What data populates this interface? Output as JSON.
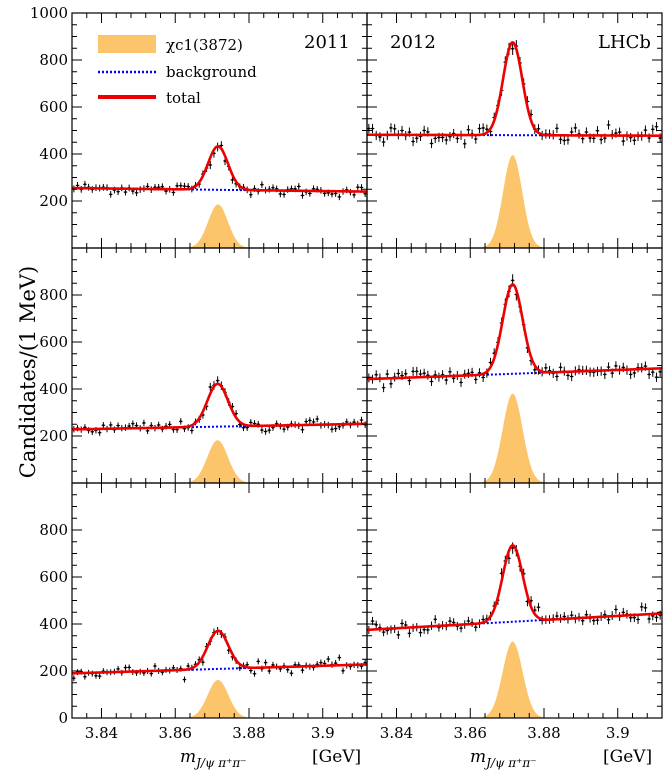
{
  "chart_data": {
    "type": "scatter",
    "y_axis_label": "Candidates/(1 MeV)",
    "x_axis_symbol": "m",
    "x_axis_subscript": "J/ψ π⁺π⁻",
    "x_axis_unit": "[GeV]",
    "x_range": [
      3.832,
      3.912
    ],
    "x_ticks": [
      3.84,
      3.86,
      3.88,
      3.9
    ],
    "x_tick_labels": [
      "3.84",
      "3.86",
      "3.88",
      "3.9"
    ],
    "legend": {
      "signal": "χc1(3872)",
      "background": "background",
      "total": "total"
    },
    "experiment_label": "LHCb",
    "year_labels": [
      "2011",
      "2012"
    ],
    "colors": {
      "signal_fill": "#fcc56b",
      "background_line": "#0000ff",
      "total_line": "#ee0000",
      "data_points": "#000000"
    },
    "panels": [
      {
        "row": 0,
        "col": 0,
        "ylim": [
          0,
          1000
        ],
        "y_ticks": [
          200,
          400,
          600,
          800,
          1000
        ],
        "y_tick_labels": [
          "200",
          "400",
          "600",
          "800",
          "1000"
        ],
        "bkg_start": 255,
        "bkg_end": 240,
        "peak": 185,
        "mean": 3.8716,
        "sigma": 0.0027,
        "noise": 12
      },
      {
        "row": 0,
        "col": 1,
        "ylim": [
          0,
          1000
        ],
        "y_ticks": [],
        "y_tick_labels": [],
        "bkg_start": 482,
        "bkg_end": 478,
        "peak": 395,
        "mean": 3.8715,
        "sigma": 0.0026,
        "noise": 18
      },
      {
        "row": 1,
        "col": 0,
        "ylim": [
          0,
          1000
        ],
        "y_ticks": [
          200,
          400,
          600,
          800
        ],
        "y_tick_labels": [
          "200",
          "400",
          "600",
          "800"
        ],
        "bkg_start": 228,
        "bkg_end": 252,
        "peak": 182,
        "mean": 3.8715,
        "sigma": 0.0028,
        "noise": 13
      },
      {
        "row": 1,
        "col": 1,
        "ylim": [
          0,
          1000
        ],
        "y_ticks": [],
        "y_tick_labels": [],
        "bkg_start": 442,
        "bkg_end": 488,
        "peak": 380,
        "mean": 3.8715,
        "sigma": 0.0027,
        "noise": 17
      },
      {
        "row": 2,
        "col": 0,
        "ylim": [
          0,
          1000
        ],
        "y_ticks": [
          0,
          200,
          400,
          600,
          800
        ],
        "y_tick_labels": [
          "0",
          "200",
          "400",
          "600",
          "800"
        ],
        "bkg_start": 190,
        "bkg_end": 228,
        "peak": 162,
        "mean": 3.8716,
        "sigma": 0.0028,
        "noise": 12
      },
      {
        "row": 2,
        "col": 1,
        "ylim": [
          0,
          1000
        ],
        "y_ticks": [],
        "y_tick_labels": [],
        "bkg_start": 375,
        "bkg_end": 445,
        "peak": 325,
        "mean": 3.8715,
        "sigma": 0.0027,
        "noise": 16
      }
    ]
  }
}
